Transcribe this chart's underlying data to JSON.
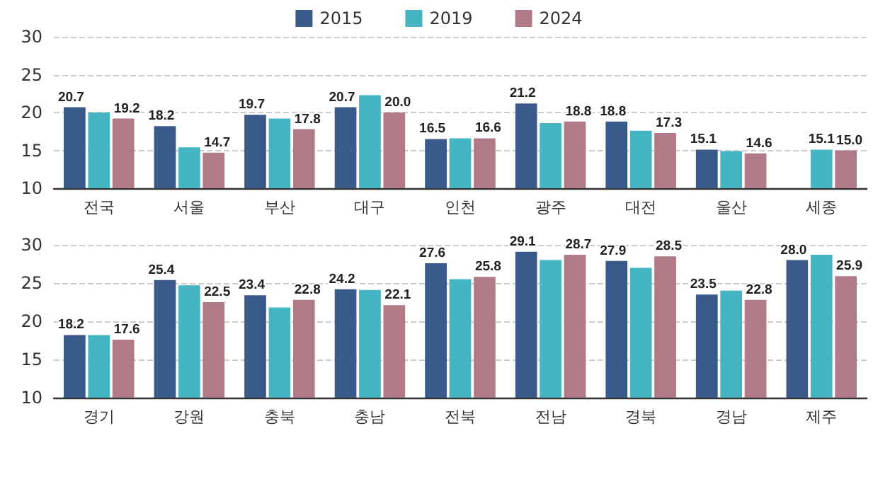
{
  "chart_data": [
    {
      "type": "bar",
      "categories": [
        "전국",
        "서울",
        "부산",
        "대구",
        "인천",
        "광주",
        "대전",
        "울산",
        "세종"
      ],
      "ylim": [
        10,
        30
      ],
      "yticks": [
        10,
        15,
        20,
        25,
        30
      ],
      "grid": "y",
      "legend": "top",
      "series": [
        {
          "name": "2015",
          "color": "#3a5a8c",
          "values": [
            20.7,
            18.2,
            19.7,
            20.7,
            16.5,
            21.2,
            18.8,
            15.1,
            null
          ],
          "value_labels": [
            "20.7",
            "18.2",
            "19.7",
            "20.7",
            "16.5",
            "21.2",
            "18.8",
            "15.1",
            null
          ]
        },
        {
          "name": "2019",
          "color": "#45b5c4",
          "values": [
            20.0,
            15.4,
            19.2,
            22.3,
            16.6,
            18.6,
            17.6,
            14.9,
            15.1
          ],
          "value_labels": [
            null,
            null,
            null,
            null,
            null,
            null,
            null,
            null,
            "15.1"
          ]
        },
        {
          "name": "2024",
          "color": "#b07a88",
          "values": [
            19.2,
            14.7,
            17.8,
            20.0,
            16.6,
            18.8,
            17.3,
            14.6,
            15.0
          ],
          "value_labels": [
            "19.2",
            "14.7",
            "17.8",
            "20.0",
            "16.6",
            "18.8",
            "17.3",
            "14.6",
            "15.0"
          ]
        }
      ]
    },
    {
      "type": "bar",
      "categories": [
        "경기",
        "강원",
        "충북",
        "충남",
        "전북",
        "전남",
        "경북",
        "경남",
        "제주"
      ],
      "ylim": [
        10,
        30
      ],
      "yticks": [
        10,
        15,
        20,
        25,
        30
      ],
      "grid": "y",
      "series": [
        {
          "color": "#3a5a8c",
          "values": [
            18.2,
            25.4,
            23.4,
            24.2,
            27.6,
            29.1,
            27.9,
            23.5,
            28.0
          ],
          "value_labels": [
            "18.2",
            "25.4",
            "23.4",
            "24.2",
            "27.6",
            "29.1",
            "27.9",
            "23.5",
            "28.0"
          ]
        },
        {
          "color": "#45b5c4",
          "values": [
            18.2,
            24.7,
            21.8,
            24.1,
            25.5,
            28.0,
            27.0,
            24.0,
            28.7
          ],
          "value_labels": [
            null,
            null,
            null,
            null,
            null,
            null,
            null,
            null,
            null
          ]
        },
        {
          "color": "#b07a88",
          "values": [
            17.6,
            22.5,
            22.8,
            22.1,
            25.8,
            28.7,
            28.5,
            22.8,
            25.9
          ],
          "value_labels": [
            "17.6",
            "22.5",
            "22.8",
            "22.1",
            "25.8",
            "28.7",
            "28.5",
            "22.8",
            "25.9"
          ]
        }
      ]
    }
  ]
}
